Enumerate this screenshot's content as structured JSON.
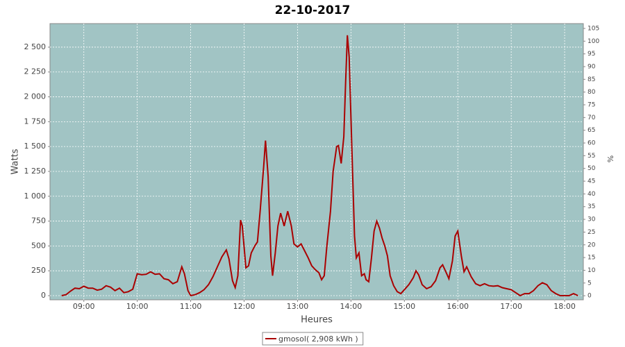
{
  "chart_data": {
    "type": "line",
    "title": "22-10-2017",
    "x_label": "Heures",
    "y_label": "Watts",
    "y2_label": "%",
    "grid": true,
    "plot_background": "#a1c4c4",
    "legend": "bottom",
    "x": [
      "08:35",
      "08:40",
      "08:45",
      "08:50",
      "08:55",
      "09:00",
      "09:05",
      "09:10",
      "09:15",
      "09:20",
      "09:25",
      "09:30",
      "09:35",
      "09:40",
      "09:45",
      "09:50",
      "09:55",
      "10:00",
      "10:05",
      "10:10",
      "10:15",
      "10:20",
      "10:25",
      "10:30",
      "10:35",
      "10:40",
      "10:45",
      "10:50",
      "10:53",
      "10:57",
      "11:00",
      "11:05",
      "11:10",
      "11:15",
      "11:20",
      "11:25",
      "11:30",
      "11:35",
      "11:40",
      "11:43",
      "11:47",
      "11:50",
      "11:53",
      "11:56",
      "11:58",
      "12:02",
      "12:05",
      "12:08",
      "12:12",
      "12:15",
      "12:18",
      "12:22",
      "12:24",
      "12:27",
      "12:30",
      "12:32",
      "12:35",
      "12:38",
      "12:41",
      "12:45",
      "12:49",
      "12:53",
      "12:56",
      "13:00",
      "13:04",
      "13:08",
      "13:12",
      "13:16",
      "13:20",
      "13:24",
      "13:27",
      "13:30",
      "13:33",
      "13:37",
      "13:40",
      "13:44",
      "13:46",
      "13:49",
      "13:52",
      "13:54",
      "13:56",
      "13:58",
      "14:01",
      "14:04",
      "14:06",
      "14:09",
      "14:12",
      "14:15",
      "14:17",
      "14:20",
      "14:23",
      "14:26",
      "14:29",
      "14:32",
      "14:35",
      "14:38",
      "14:41",
      "14:44",
      "14:48",
      "14:52",
      "14:56",
      "15:00",
      "15:05",
      "15:10",
      "15:13",
      "15:16",
      "15:20",
      "15:25",
      "15:30",
      "15:35",
      "15:40",
      "15:43",
      "15:47",
      "15:50",
      "15:54",
      "15:57",
      "16:00",
      "16:04",
      "16:07",
      "16:10",
      "16:15",
      "16:20",
      "16:25",
      "16:30",
      "16:35",
      "16:40",
      "16:45",
      "16:50",
      "16:55",
      "17:00",
      "17:05",
      "17:10",
      "17:15",
      "17:20",
      "17:25",
      "17:30",
      "17:35",
      "17:40",
      "17:45",
      "17:50",
      "17:55",
      "18:00",
      "18:05",
      "18:10",
      "18:15"
    ],
    "series": [
      {
        "name": "gmosol( 2,908 kWh )",
        "color": "#aa0000",
        "values": [
          0,
          10,
          45,
          75,
          70,
          95,
          75,
          75,
          55,
          65,
          100,
          85,
          50,
          75,
          30,
          40,
          65,
          220,
          210,
          215,
          240,
          215,
          220,
          170,
          160,
          120,
          140,
          290,
          220,
          50,
          0,
          10,
          30,
          60,
          110,
          190,
          290,
          390,
          460,
          370,
          150,
          80,
          200,
          760,
          700,
          280,
          300,
          430,
          500,
          540,
          850,
          1300,
          1560,
          1200,
          400,
          200,
          430,
          700,
          830,
          700,
          850,
          700,
          520,
          490,
          520,
          450,
          380,
          300,
          260,
          230,
          160,
          200,
          500,
          850,
          1250,
          1500,
          1510,
          1330,
          1600,
          2150,
          2620,
          2400,
          1500,
          600,
          380,
          430,
          200,
          220,
          160,
          140,
          380,
          650,
          750,
          680,
          580,
          500,
          400,
          200,
          100,
          40,
          20,
          60,
          110,
          180,
          250,
          210,
          110,
          70,
          90,
          150,
          280,
          310,
          230,
          170,
          350,
          600,
          650,
          400,
          240,
          290,
          190,
          120,
          100,
          120,
          100,
          95,
          100,
          80,
          70,
          60,
          30,
          0,
          20,
          20,
          50,
          100,
          130,
          110,
          50,
          20,
          0,
          0,
          0,
          20,
          0
        ]
      }
    ],
    "xlim": [
      "08:22",
      "18:21"
    ],
    "xticks": [
      "09:00",
      "10:00",
      "11:00",
      "12:00",
      "13:00",
      "14:00",
      "15:00",
      "16:00",
      "17:00",
      "18:00"
    ],
    "ylim": [
      -42,
      2737
    ],
    "yticks": [
      0,
      250,
      500,
      750,
      {
        "value": 1000,
        "label": "1 000"
      },
      {
        "value": 1250,
        "label": "1 250"
      },
      {
        "value": 1500,
        "label": "1 500"
      },
      {
        "value": 1750,
        "label": "1 750"
      },
      {
        "value": 2000,
        "label": "2 000"
      },
      {
        "value": 2250,
        "label": "2 250"
      },
      {
        "value": 2500,
        "label": "2 500"
      }
    ],
    "y2lim": [
      -1.6,
      106.9
    ],
    "y2ticks": [
      0,
      5,
      10,
      15,
      20,
      25,
      30,
      35,
      40,
      45,
      50,
      55,
      60,
      65,
      70,
      75,
      80,
      85,
      90,
      95,
      100,
      105
    ]
  }
}
